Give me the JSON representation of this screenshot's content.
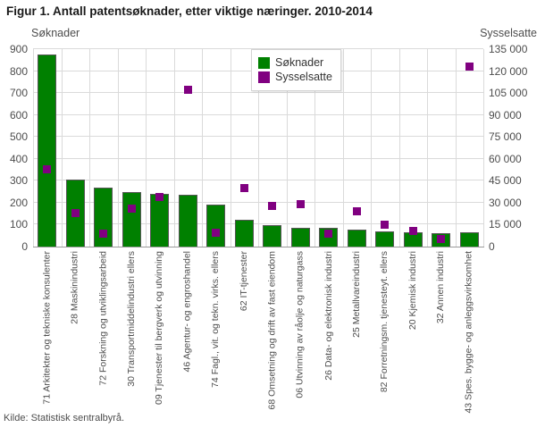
{
  "title": "Figur 1. Antall patentsøknader, etter viktige næringer. 2010-2014",
  "source": "Kilde: Statistisk sentralbyrå.",
  "left_axis": {
    "label": "Søknader",
    "ticks": [
      "0",
      "100",
      "200",
      "300",
      "400",
      "500",
      "600",
      "700",
      "800",
      "900"
    ]
  },
  "right_axis": {
    "label": "Sysselsatte",
    "ticks": [
      "0",
      "15 000",
      "30 000",
      "45 000",
      "60 000",
      "75 000",
      "90 000",
      "105 000",
      "120 000",
      "135 000"
    ]
  },
  "legend": [
    {
      "label": "Søknader",
      "color": "#008000"
    },
    {
      "label": "Sysselsatte",
      "color": "#800080"
    }
  ],
  "colors": {
    "bar": "#008000",
    "marker": "#800080",
    "grid": "#dadada",
    "axis_text": "#4d4d4d"
  },
  "chart_data": {
    "type": "bar",
    "title": "Figur 1. Antall patentsøknader, etter viktige næringer. 2010-2014",
    "xlabel": "",
    "ylabel_left": "Søknader",
    "ylabel_right": "Sysselsatte",
    "left_ylim": [
      0,
      900
    ],
    "right_ylim": [
      0,
      135000
    ],
    "grid": true,
    "legend_position": "top-center",
    "categories": [
      "71 Arkitekter og tekniske konsulenter",
      "28 Maskinindustri",
      "72 Forskning og utviklingsarbeid",
      "30 Transportmiddelindustri ellers",
      "09 Tjenester til bergverk og utvinning",
      "46 Agentur- og engroshandel",
      "74 Fagl., vit. og tekn. virks. ellers",
      "62 IT-tjenester",
      "68 Omsetning og drift av fast eiendom",
      "06 Utvinning av råolje og naturgass",
      "26 Data- og elektronisk industri",
      "25 Metallvareindustri",
      "82 Forretningsm. tjenesteyt. ellers",
      "20 Kjemisk industri",
      "32 Annen industri",
      "43 Spes. bygge- og anleggsvirksomhet"
    ],
    "series": [
      {
        "name": "Søknader",
        "type": "bar",
        "axis": "left",
        "color": "#008000",
        "values": [
          875,
          305,
          268,
          250,
          240,
          235,
          193,
          122,
          98,
          87,
          84,
          77,
          71,
          67,
          61,
          64
        ]
      },
      {
        "name": "Sysselsatte",
        "type": "scatter",
        "axis": "right",
        "color": "#800080",
        "values": [
          53000,
          23000,
          9000,
          26000,
          34000,
          107000,
          9500,
          40000,
          28000,
          29000,
          9000,
          24000,
          15000,
          10500,
          5000,
          123000
        ]
      }
    ]
  }
}
